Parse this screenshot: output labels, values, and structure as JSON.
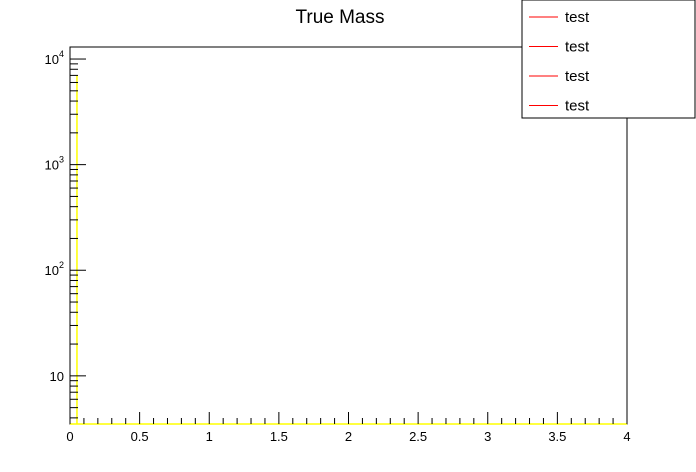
{
  "chart_data": {
    "type": "line",
    "title": "True Mass",
    "xlabel": "",
    "ylabel": "",
    "xlim": [
      0,
      4
    ],
    "ylim": [
      3.5,
      13000
    ],
    "yscale": "log",
    "grid": false,
    "legend_position": "top-right",
    "x_ticks": [
      {
        "value": 0,
        "label": "0"
      },
      {
        "value": 0.5,
        "label": "0.5"
      },
      {
        "value": 1,
        "label": "1"
      },
      {
        "value": 1.5,
        "label": "1.5"
      },
      {
        "value": 2,
        "label": "2"
      },
      {
        "value": 2.5,
        "label": "2.5"
      },
      {
        "value": 3,
        "label": "3"
      },
      {
        "value": 3.5,
        "label": "3.5"
      },
      {
        "value": 4,
        "label": "4"
      }
    ],
    "y_ticks": [
      {
        "value": 10,
        "base": "10",
        "exp": ""
      },
      {
        "value": 100,
        "base": "10",
        "exp": "2"
      },
      {
        "value": 1000,
        "base": "10",
        "exp": "3"
      },
      {
        "value": 10000,
        "base": "10",
        "exp": "4"
      }
    ],
    "series": [
      {
        "name": "test",
        "color": "#ffff00",
        "values": [
          [
            0,
            3.5
          ],
          [
            0.05,
            3.5
          ],
          [
            0.05,
            7000
          ],
          [
            0.05,
            3.5
          ],
          [
            4,
            3.5
          ]
        ]
      }
    ],
    "legend": [
      {
        "label": "test",
        "color": "#ff0000"
      },
      {
        "label": "test",
        "color": "#ff0000"
      },
      {
        "label": "test",
        "color": "#ff0000"
      },
      {
        "label": "test",
        "color": "#ff0000"
      }
    ]
  }
}
